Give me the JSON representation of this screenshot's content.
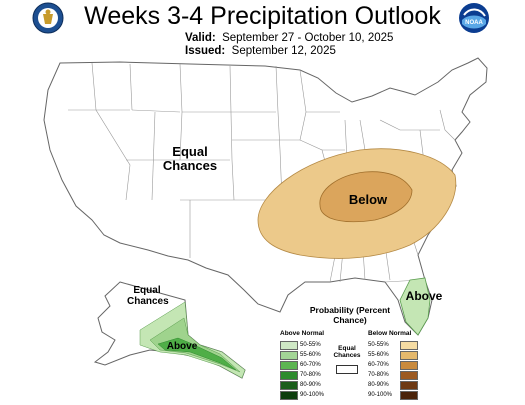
{
  "title": "Weeks 3-4 Precipitation Outlook",
  "valid": {
    "label": "Valid:",
    "value": "September 27 - October 10, 2025"
  },
  "issued": {
    "label": "Issued:",
    "value": "September 12, 2025"
  },
  "logos": {
    "left": "commerce-seal-icon",
    "right": "noaa-logo-icon",
    "noaa_text": "NOAA"
  },
  "map_labels": {
    "conus_equal": "Equal Chances",
    "below": "Below",
    "above_fl": "Above",
    "alaska_equal": "Equal Chances",
    "alaska_above": "Above"
  },
  "legend": {
    "title": "Probability (Percent Chance)",
    "above_header": "Above Normal",
    "below_header": "Below Normal",
    "equal_label": "Equal Chances",
    "above": [
      {
        "range": "50-55%",
        "color": "#cfe8c5"
      },
      {
        "range": "55-60%",
        "color": "#a3d596"
      },
      {
        "range": "60-70%",
        "color": "#5db552"
      },
      {
        "range": "70-80%",
        "color": "#2e8b2e"
      },
      {
        "range": "80-90%",
        "color": "#1b5e1b"
      },
      {
        "range": "90-100%",
        "color": "#0d3d0d"
      }
    ],
    "below": [
      {
        "range": "50-55%",
        "color": "#f5dca3"
      },
      {
        "range": "55-60%",
        "color": "#e4b86c"
      },
      {
        "range": "60-70%",
        "color": "#c98a3d"
      },
      {
        "range": "70-80%",
        "color": "#9c5a22"
      },
      {
        "range": "80-90%",
        "color": "#6e3a14"
      },
      {
        "range": "90-100%",
        "color": "#4a230a"
      }
    ]
  },
  "colors": {
    "below_light": "#ecc98a",
    "below_dark": "#dba55c",
    "above_light": "#c4e6b4",
    "above_mid": "#9fd38d",
    "above_dark": "#4fae47",
    "above_darker": "#2f8a2f",
    "state_line": "#888888"
  }
}
